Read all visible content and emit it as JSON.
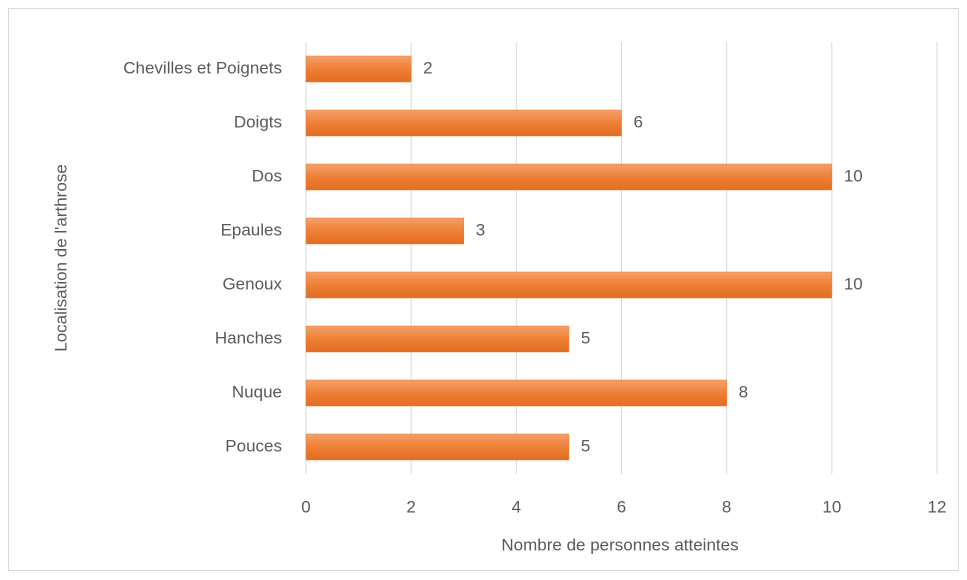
{
  "chart_data": {
    "type": "bar",
    "orientation": "horizontal",
    "categories": [
      "Chevilles et Poignets",
      "Doigts",
      "Dos",
      "Epaules",
      "Genoux",
      "Hanches",
      "Nuque",
      "Pouces"
    ],
    "values": [
      2,
      6,
      10,
      3,
      10,
      5,
      8,
      5
    ],
    "color": "#ed7d31",
    "xlim": [
      0,
      12
    ],
    "xticks": [
      0,
      2,
      4,
      6,
      8,
      10,
      12
    ],
    "grid": true,
    "x_label": "Nombre de personnes atteintes",
    "y_label": "Localisation de l'arthrose"
  }
}
